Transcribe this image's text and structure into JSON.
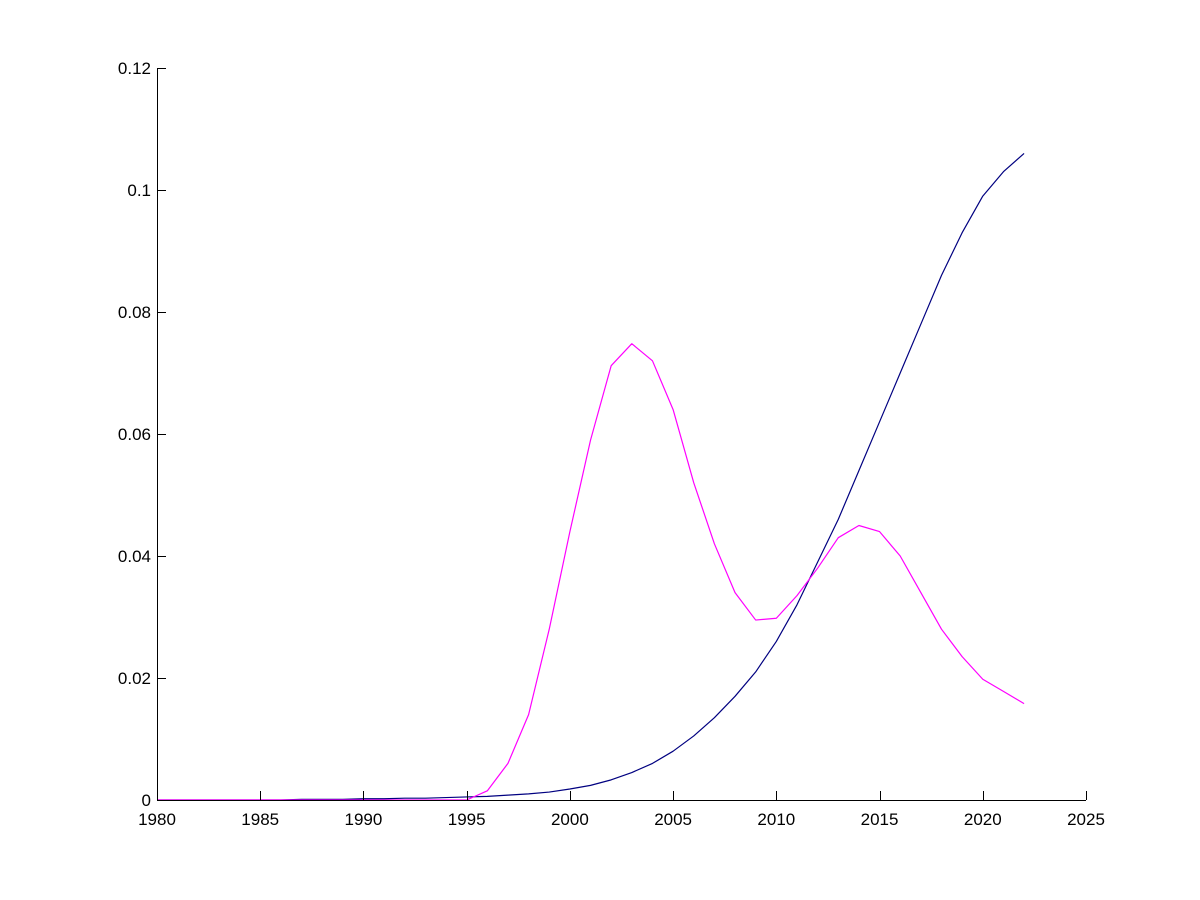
{
  "chart_data": {
    "type": "line",
    "title": "",
    "xlabel": "",
    "ylabel": "",
    "xlim": [
      1980,
      2025
    ],
    "ylim": [
      0,
      0.12
    ],
    "grid": false,
    "x_ticks": [
      1980,
      1985,
      1990,
      1995,
      2000,
      2005,
      2010,
      2015,
      2020,
      2025
    ],
    "x_tick_labels": [
      "1980",
      "1985",
      "1990",
      "1995",
      "2000",
      "2005",
      "2010",
      "2015",
      "2020",
      "2025"
    ],
    "y_ticks": [
      0,
      0.02,
      0.04,
      0.06,
      0.08,
      0.1,
      0.12
    ],
    "y_tick_labels": [
      "0",
      "0.02",
      "0.04",
      "0.06",
      "0.08",
      "0.1",
      "0.12"
    ],
    "series": [
      {
        "color": "#000080",
        "x": [
          1980,
          1981,
          1982,
          1983,
          1984,
          1985,
          1986,
          1987,
          1988,
          1989,
          1990,
          1991,
          1992,
          1993,
          1994,
          1995,
          1996,
          1997,
          1998,
          1999,
          2000,
          2001,
          2002,
          2003,
          2004,
          2005,
          2006,
          2007,
          2008,
          2009,
          2010,
          2011,
          2012,
          2013,
          2014,
          2015,
          2016,
          2017,
          2018,
          2019,
          2020,
          2021,
          2022
        ],
        "y": [
          0,
          0,
          0,
          0,
          0,
          0,
          0,
          0.0001,
          0.0001,
          0.0001,
          0.0002,
          0.0002,
          0.0003,
          0.0003,
          0.0004,
          0.0005,
          0.0006,
          0.0008,
          0.001,
          0.0013,
          0.0018,
          0.0024,
          0.0033,
          0.0045,
          0.006,
          0.008,
          0.0105,
          0.0135,
          0.017,
          0.021,
          0.026,
          0.032,
          0.039,
          0.046,
          0.054,
          0.062,
          0.07,
          0.078,
          0.086,
          0.093,
          0.099,
          0.103,
          0.106
        ]
      },
      {
        "color": "#ff00ff",
        "x": [
          1980,
          1981,
          1982,
          1983,
          1984,
          1985,
          1986,
          1987,
          1988,
          1989,
          1990,
          1991,
          1992,
          1993,
          1994,
          1995,
          1996,
          1997,
          1998,
          1999,
          2000,
          2001,
          2002,
          2003,
          2004,
          2005,
          2006,
          2007,
          2008,
          2009,
          2010,
          2011,
          2012,
          2013,
          2014,
          2015,
          2016,
          2017,
          2018,
          2019,
          2020,
          2021,
          2022
        ],
        "y": [
          0,
          0,
          0,
          0,
          0,
          0,
          0,
          0,
          0,
          0,
          0,
          0,
          0,
          0,
          0,
          0,
          0.0015,
          0.006,
          0.014,
          0.028,
          0.044,
          0.059,
          0.0712,
          0.0748,
          0.072,
          0.064,
          0.052,
          0.042,
          0.034,
          0.0295,
          0.0298,
          0.0335,
          0.038,
          0.043,
          0.045,
          0.044,
          0.04,
          0.034,
          0.028,
          0.0235,
          0.0198,
          0.0178,
          0.0158
        ]
      }
    ]
  }
}
